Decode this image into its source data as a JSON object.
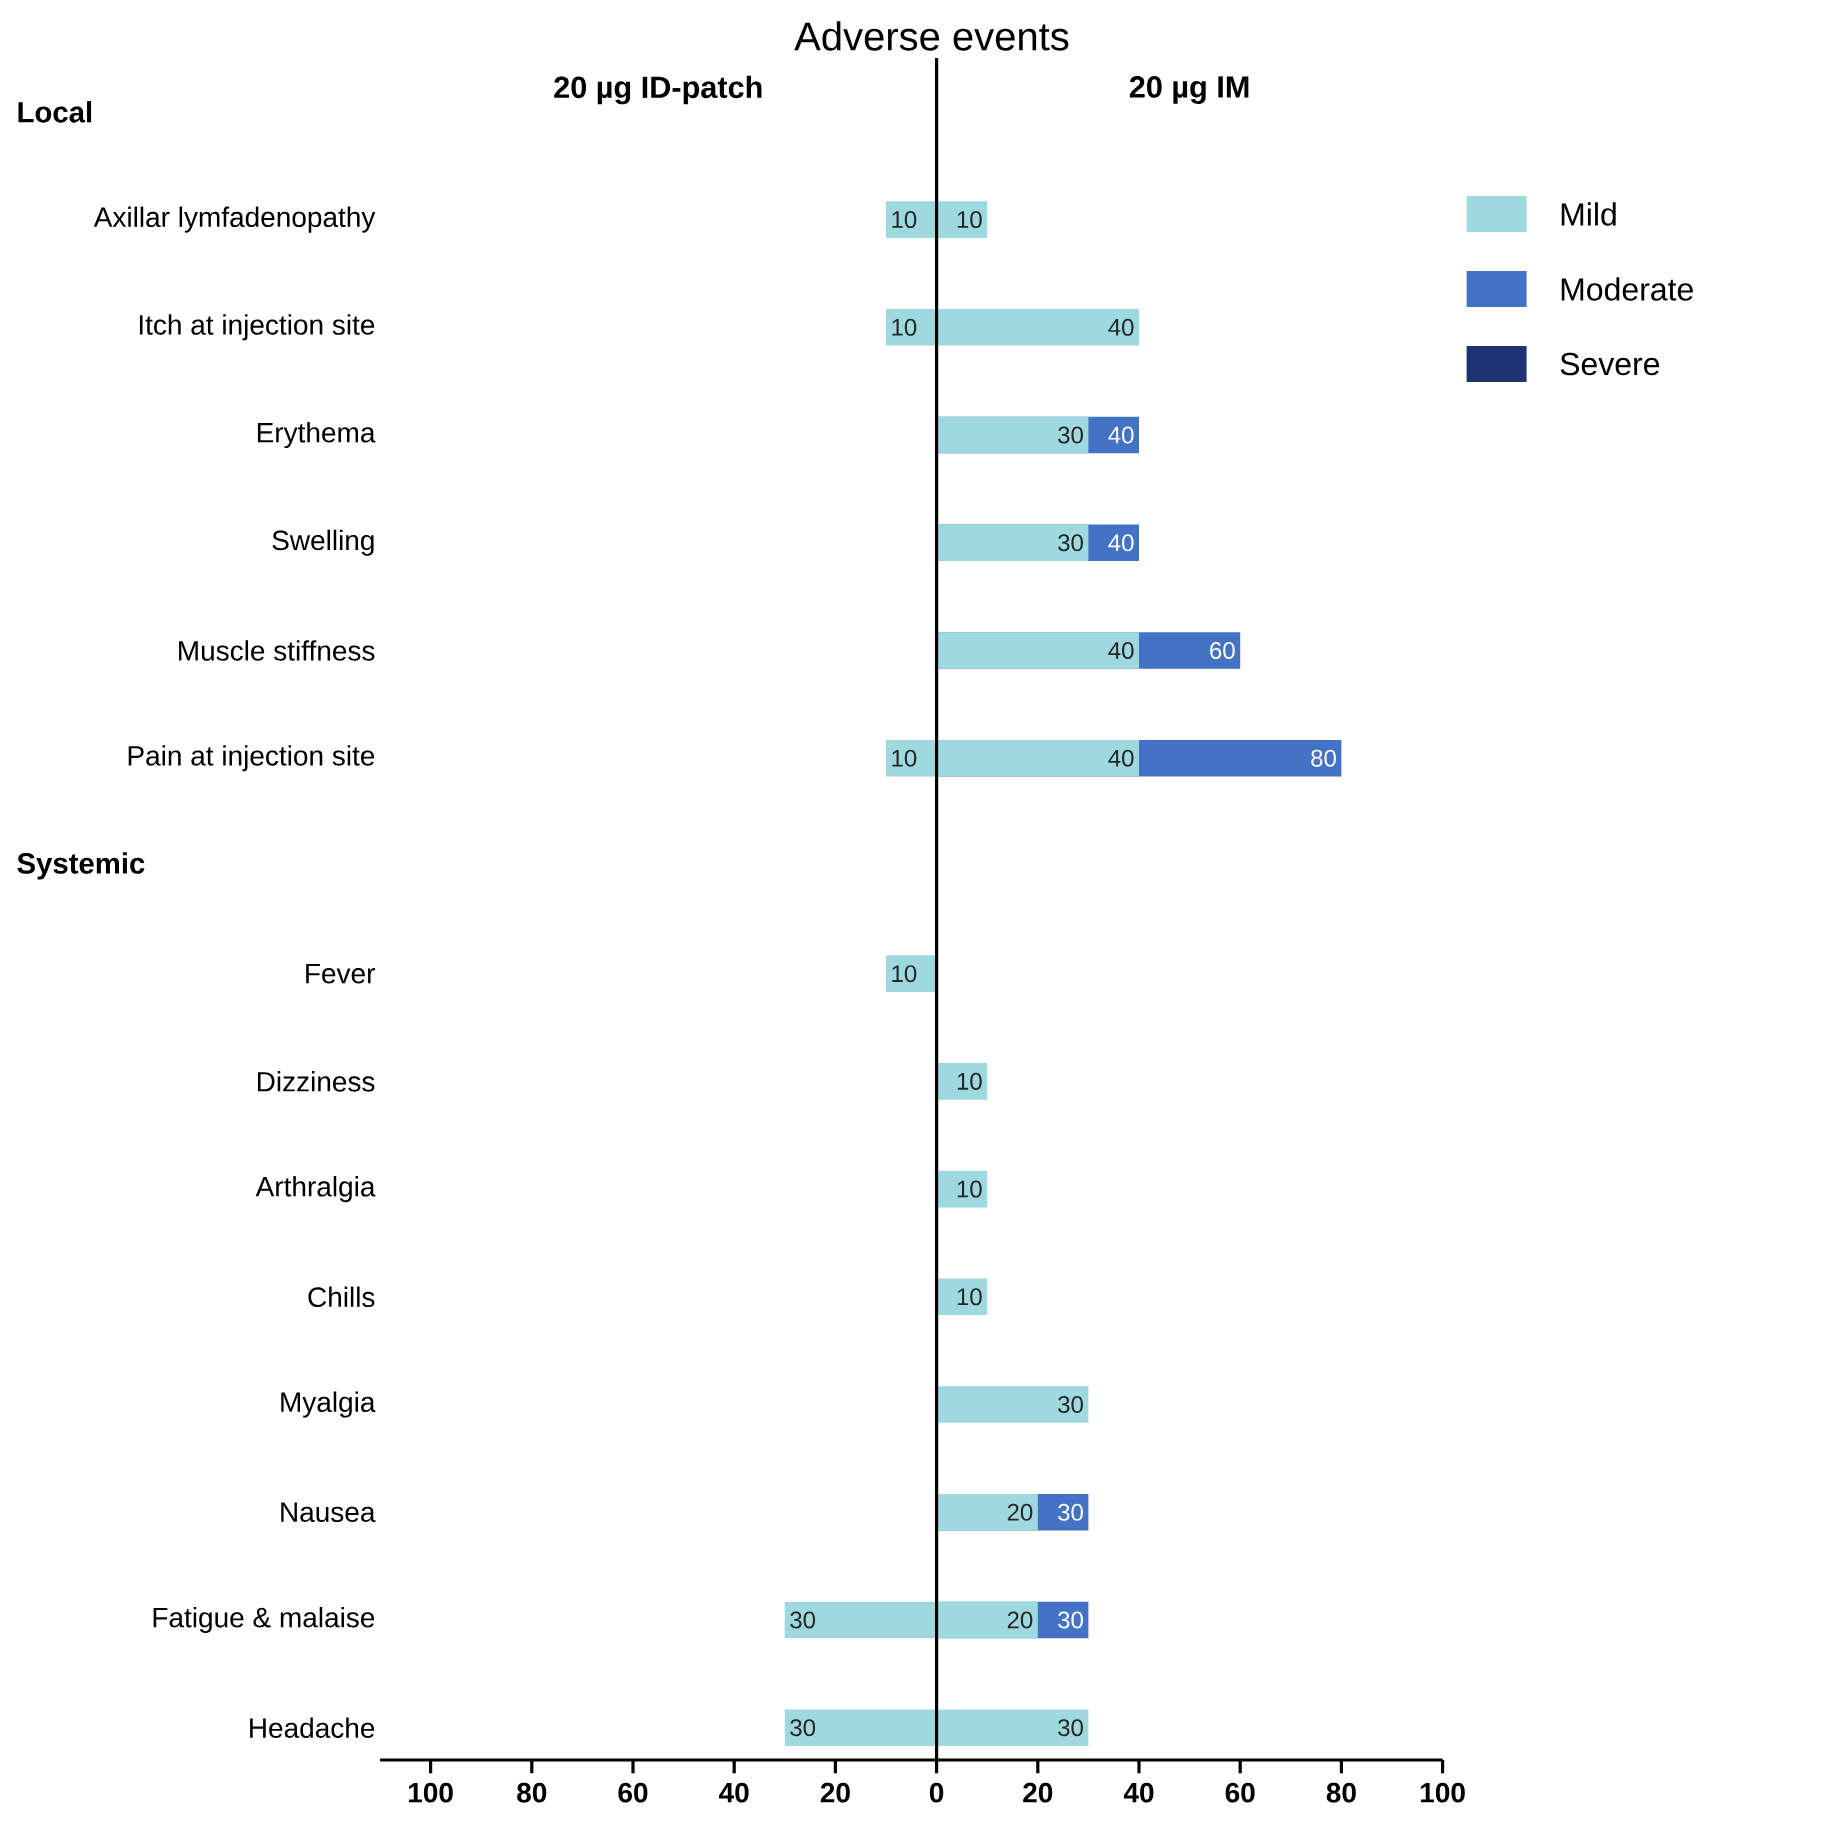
{
  "chart_data": [
    {
      "type": "bar",
      "title": "20 µg ID-patch",
      "orientation": "horizontal",
      "annotations": [
        "Adverse events",
        "Local",
        "Systemic"
      ],
      "categories": [
        null,
        "Axillar lymfadenopathy",
        "Itch at injection site",
        "Erythema",
        "Swelling",
        "Muscle stiffness",
        "Pain at injection site",
        null,
        "Fever",
        "Dizziness",
        "Arthralgia",
        "Chills",
        "Myalgia",
        "Nausea",
        "Fatigue & malaise",
        "Headache"
      ],
      "xlim": [
        110,
        0
      ],
      "xticks": [
        100,
        80,
        60,
        40,
        20
      ],
      "series": [
        {
          "color": "#9fd9e0",
          "values": [
            null,
            10,
            10,
            null,
            null,
            null,
            10,
            null,
            10,
            null,
            null,
            null,
            null,
            null,
            30,
            30
          ],
          "value_labels": [
            null,
            "10",
            "10",
            null,
            null,
            null,
            "10",
            null,
            "10",
            null,
            null,
            null,
            null,
            null,
            "30",
            "30"
          ]
        }
      ]
    },
    {
      "type": "bar",
      "title": "20 µg IM",
      "orientation": "horizontal",
      "legend": "top right",
      "tick_labels": "x",
      "categories": [
        null,
        null,
        null,
        null,
        null,
        null,
        null,
        null,
        null,
        null,
        null,
        null,
        null,
        null,
        null,
        null
      ],
      "xlim": [
        0,
        100
      ],
      "xticks": [
        0,
        20,
        40,
        60,
        80,
        100
      ],
      "series": [
        {
          "name": "Mild",
          "color": "#9fd9e0",
          "values": [
            null,
            10,
            40,
            30,
            30,
            40,
            40,
            null,
            null,
            10,
            10,
            10,
            30,
            20,
            20,
            30
          ],
          "value_labels": [
            null,
            "10",
            "40",
            "30",
            "30",
            "40",
            "40",
            null,
            null,
            "10",
            "10",
            "10",
            "30",
            "20",
            "20",
            "30"
          ]
        },
        {
          "name": "Moderate",
          "color": "#4472c4",
          "values": [
            null,
            null,
            null,
            40,
            40,
            60,
            80,
            null,
            null,
            null,
            null,
            null,
            null,
            30,
            30,
            null
          ],
          "value_labels": [
            null,
            null,
            null,
            "40",
            "40",
            "60",
            "80",
            null,
            null,
            null,
            null,
            null,
            null,
            "30",
            "30",
            null
          ]
        },
        {
          "name": "Severe",
          "color": "#1f3372",
          "values": [
            null,
            null,
            null,
            null,
            null,
            null,
            null,
            null,
            null,
            null,
            null,
            null,
            null,
            null,
            null,
            null
          ]
        }
      ]
    }
  ]
}
